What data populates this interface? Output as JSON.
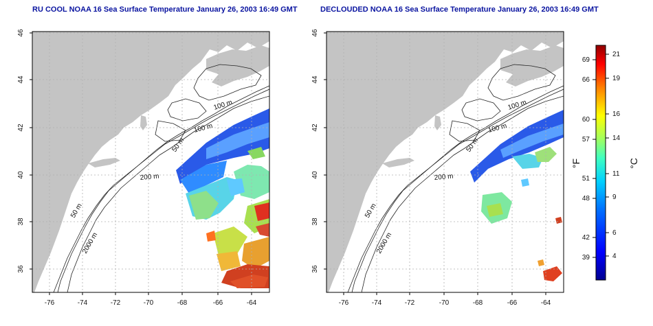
{
  "titles": {
    "left": "RU COOL NOAA 16 Sea Surface Temperature January 26, 2003 16:49 GMT",
    "right": "DECLOUDED NOAA 16 Sea Surface Temperature January 26, 2003 16:49 GMT"
  },
  "axes": {
    "lon_ticks": [
      "-76",
      "-74",
      "-72",
      "-70",
      "-68",
      "-66",
      "-64"
    ],
    "lat_ticks": [
      "36",
      "38",
      "40",
      "42",
      "44",
      "46"
    ]
  },
  "contour_labels": {
    "left": [
      "100 m",
      "100 m",
      "50 m",
      "200 m",
      "50 m",
      "2000 m"
    ],
    "right": [
      "100 m",
      "100 m",
      "50 m",
      "200 m",
      "50 m",
      "2000 m"
    ]
  },
  "colorbar": {
    "fahrenheit_label": "°F",
    "celsius_label": "°C",
    "fahrenheit_ticks": [
      "69",
      "66",
      "60",
      "57",
      "51",
      "48",
      "42",
      "39"
    ],
    "celsius_ticks": [
      "21",
      "19",
      "16",
      "14",
      "11",
      "9",
      "6",
      "4"
    ]
  },
  "colors": {
    "land": "#c4c4c4",
    "title": "#0a14a0",
    "grid": "#b0b0b0"
  }
}
